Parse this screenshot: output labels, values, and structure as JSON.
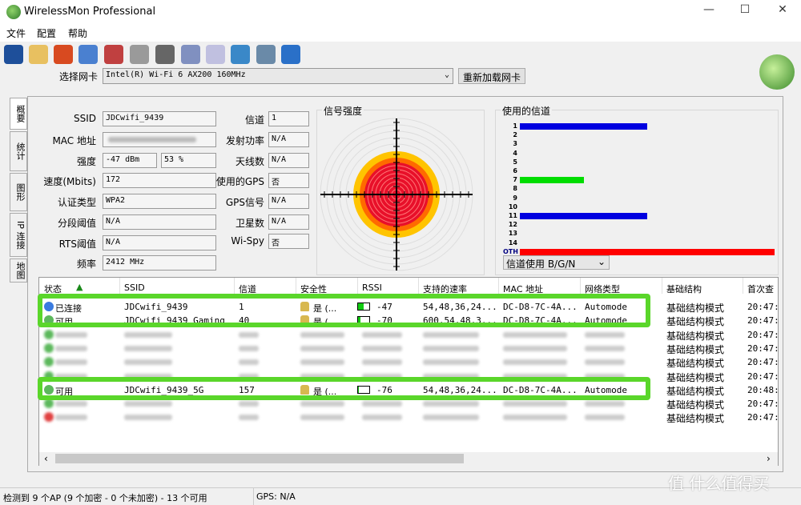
{
  "window": {
    "title": "WirelessMon Professional",
    "minimize": "—",
    "maximize": "☐",
    "close": "✕"
  },
  "menu": [
    "文件",
    "配置",
    "帮助"
  ],
  "toolbar": {
    "icons": [
      "save-icon",
      "open-folder-icon",
      "target-icon",
      "connect-icon",
      "disconnect-icon",
      "play-log-icon",
      "print-icon",
      "check-doc-icon",
      "clipboard-icon",
      "globe-icon",
      "info-icon",
      "help-icon"
    ],
    "adapter_label": "选择网卡",
    "adapter_value": "Intel(R) Wi-Fi 6 AX200 160MHz",
    "reload_button": "重新加载网卡"
  },
  "tabs": [
    "概要",
    "统计",
    "图形",
    "IP 连接",
    "地图"
  ],
  "info": {
    "ssid_label": "SSID",
    "ssid": "JDCwifi_9439",
    "mac_label": "MAC 地址",
    "strength_label": "强度",
    "strength_dbm": "-47 dBm",
    "strength_pct": "53 %",
    "speed_label": "速度(Mbits)",
    "speed": "172",
    "auth_label": "认证类型",
    "auth": "WPA2",
    "frag_label": "分段阈值",
    "frag": "N/A",
    "rts_label": "RTS阈值",
    "rts": "N/A",
    "freq_label": "频率",
    "freq": "2412 MHz",
    "channel_label": "信道",
    "channel": "1",
    "txpower_label": "发射功率",
    "txpower": "N/A",
    "antenna_label": "天线数",
    "antenna": "N/A",
    "gps_used_label": "使用的GPS",
    "gps_used": "否",
    "gps_signal_label": "GPS信号",
    "gps_signal": "N/A",
    "satellites_label": "卫星数",
    "satellites": "N/A",
    "wispy_label": "Wi-Spy",
    "wispy": "否"
  },
  "signal": {
    "title": "信号强度",
    "percent": 53
  },
  "chart_data": {
    "type": "bar",
    "title": "使用的信道",
    "categories": [
      "1",
      "2",
      "3",
      "4",
      "5",
      "6",
      "7",
      "8",
      "9",
      "10",
      "11",
      "12",
      "13",
      "14",
      "OTH"
    ],
    "values": [
      2,
      0,
      0,
      0,
      0,
      0,
      1,
      0,
      0,
      0,
      2,
      0,
      0,
      0,
      4
    ],
    "colors": [
      "#0000e0",
      "",
      "",
      "",
      "",
      "",
      "#00dd00",
      "",
      "",
      "",
      "#0000e0",
      "",
      "",
      "",
      "#ff0000"
    ],
    "mode_select": "信道使用 B/G/N"
  },
  "list": {
    "headers": [
      "状态",
      "SSID",
      "信道",
      "安全性",
      "RSSI",
      "支持的速率",
      "MAC 地址",
      "网络类型",
      "基础结构",
      "首次查"
    ],
    "rows": [
      {
        "status": "已连接",
        "dot": "#3a7be0",
        "ssid": "JDCwifi_9439",
        "channel": "1",
        "security": "是 (...",
        "rssi": "-47",
        "rssi_level": 0.53,
        "rates": "54,48,36,24...",
        "mac": "DC-D8-7C-4A...",
        "type": "Automode",
        "infra": "基础结构模式",
        "first": "20:47:",
        "visible": true
      },
      {
        "status": "可用",
        "dot": "#5cb85c",
        "ssid": "JDCwifi_9439_Gaming",
        "channel": "40",
        "security": "是 (...",
        "rssi": "-70",
        "rssi_level": 0.2,
        "rates": "600,54,48,3...",
        "mac": "DC-D8-7C-4A...",
        "type": "Automode",
        "infra": "基础结构模式",
        "first": "20:47:",
        "visible": true
      },
      {
        "dot": "#5cb85c",
        "infra": "基础结构模式",
        "first": "20:47:",
        "visible": false
      },
      {
        "dot": "#5cb85c",
        "infra": "基础结构模式",
        "first": "20:47:",
        "visible": false
      },
      {
        "dot": "#5cb85c",
        "infra": "基础结构模式",
        "first": "20:47:",
        "visible": false
      },
      {
        "dot": "#5cb85c",
        "infra": "基础结构模式",
        "first": "20:47:",
        "visible": false
      },
      {
        "status": "可用",
        "dot": "#5cb85c",
        "ssid": "JDCwifi_9439_5G",
        "channel": "157",
        "security": "是 (...",
        "rssi": "-76",
        "rssi_level": 0.05,
        "rates": "54,48,36,24...",
        "mac": "DC-D8-7C-4A...",
        "type": "Automode",
        "infra": "基础结构模式",
        "first": "20:48:",
        "visible": true
      },
      {
        "dot": "#5cb85c",
        "infra": "基础结构模式",
        "first": "20:47:",
        "visible": false
      },
      {
        "dot": "#e04040",
        "infra": "基础结构模式",
        "first": "20:47:",
        "visible": false
      }
    ]
  },
  "statusbar": {
    "summary": "检测到 9 个AP (9 个加密 - 0 个未加密) - 13 个可用",
    "gps": "GPS: N/A"
  },
  "watermark": "值 什么值得买"
}
